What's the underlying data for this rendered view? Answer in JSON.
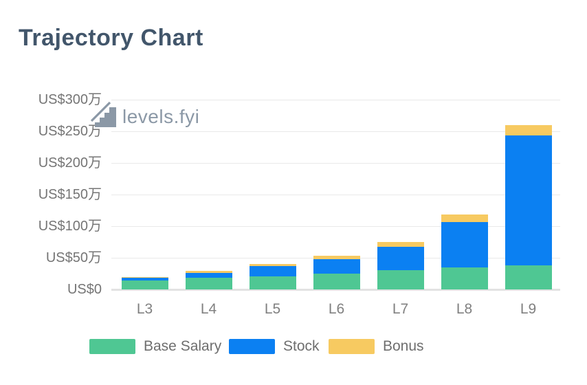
{
  "page": {
    "title": "Trajectory Chart",
    "background": "#ffffff"
  },
  "watermark": {
    "text": "levels.fyi",
    "icon": "stairs-growth-icon",
    "color": "#8b98a6"
  },
  "chart_data": {
    "type": "bar",
    "stacked": true,
    "title": "Trajectory Chart",
    "categories": [
      "L3",
      "L4",
      "L5",
      "L6",
      "L7",
      "L8",
      "L9"
    ],
    "series": [
      {
        "name": "Base Salary",
        "color": "#4fc793",
        "values": [
          14,
          18,
          21,
          25,
          30,
          35,
          38
        ]
      },
      {
        "name": "Stock",
        "color": "#0b80f2",
        "values": [
          4,
          8,
          16,
          23,
          37,
          71,
          206
        ]
      },
      {
        "name": "Bonus",
        "color": "#f7ca61",
        "values": [
          2,
          3,
          3,
          5,
          8,
          12,
          16
        ]
      }
    ],
    "totals": [
      20,
      29,
      40,
      53,
      75,
      118,
      260
    ],
    "value_unit": "万",
    "y_ticks": [
      "US$300万",
      "US$250万",
      "US$200万",
      "US$150万",
      "US$100万",
      "US$50万",
      "US$0"
    ],
    "ylim": [
      0,
      300
    ],
    "xlabel": "",
    "ylabel": "",
    "grid": "horizontal",
    "legend_position": "bottom"
  },
  "legend": {
    "items": [
      {
        "label": "Base Salary",
        "color": "#4fc793"
      },
      {
        "label": "Stock",
        "color": "#0b80f2"
      },
      {
        "label": "Bonus",
        "color": "#f7ca61"
      }
    ]
  },
  "colors": {
    "title": "#42566b",
    "axis_label": "#757575",
    "category_label": "#808080",
    "legend_label": "#6e6e6e",
    "gridline": "#e9e9e9",
    "baseline": "#e2e2e2",
    "watermark": "#8b98a6"
  }
}
